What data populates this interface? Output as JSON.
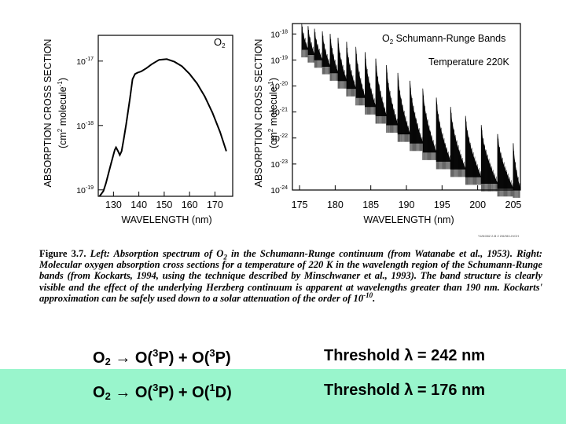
{
  "chart_data": [
    {
      "type": "line",
      "title": "O2",
      "xlabel": "WAVELENGTH (nm)",
      "ylabel": "ABSORPTION CROSS SECTION",
      "ylabel2": "(cm2 molecule-1)",
      "xlim": [
        124,
        177
      ],
      "ylim_log10": [
        -19.1,
        -16.6
      ],
      "xticks": [
        "130",
        "140",
        "150",
        "160",
        "170"
      ],
      "xtick_values": [
        130,
        140,
        150,
        160,
        170
      ],
      "yticks": [
        "10-17",
        "10-18",
        "10-19"
      ],
      "ytick_exponents": [
        -17,
        -18,
        -19
      ],
      "series": [
        {
          "name": "O2 Schumann-Runge continuum",
          "x": [
            124.5,
            126,
            127,
            128,
            129,
            130,
            130.5,
            131,
            131.8,
            132.5,
            133.2,
            134,
            135,
            136.5,
            137.5,
            138.5,
            139.5,
            141,
            143,
            145,
            148,
            151,
            154,
            157,
            160,
            163,
            166,
            169,
            172,
            174.5
          ],
          "log10_sigma": [
            -19.1,
            -19.02,
            -18.9,
            -18.75,
            -18.6,
            -18.45,
            -18.38,
            -18.34,
            -18.4,
            -18.46,
            -18.4,
            -18.22,
            -17.98,
            -17.58,
            -17.28,
            -17.2,
            -17.18,
            -17.16,
            -17.11,
            -17.05,
            -16.98,
            -16.97,
            -17.01,
            -17.08,
            -17.2,
            -17.35,
            -17.55,
            -17.8,
            -18.1,
            -18.4
          ]
        }
      ]
    },
    {
      "type": "line",
      "title": "O2 Schumann-Runge Bands",
      "subtitle": "Temperature 220K",
      "xlabel": "WAVELENGTH (nm)",
      "ylabel": "ABSORPTION CROSS SECTION",
      "ylabel2": "(cm2 molecule-1)",
      "xlim": [
        174,
        206
      ],
      "ylim_log10": [
        -24,
        -17.6
      ],
      "xticks": [
        "175",
        "180",
        "185",
        "190",
        "195",
        "200",
        "205"
      ],
      "xtick_values": [
        175,
        180,
        185,
        190,
        195,
        200,
        205
      ],
      "yticks": [
        "10-18",
        "10-19",
        "10-20",
        "10-21",
        "10-22",
        "10-23",
        "10-24"
      ],
      "ytick_exponents": [
        -18,
        -19,
        -20,
        -21,
        -22,
        -23,
        -24
      ],
      "band_origins_nm": [
        175.3,
        176.2,
        177.1,
        178.2,
        179.3,
        180.4,
        181.6,
        182.9,
        184.2,
        185.7,
        187.2,
        188.8,
        190.5,
        192.3,
        194.2,
        196.2,
        198.3,
        200.5,
        202.8,
        205.0
      ],
      "band_peaks_log10": [
        -17.6,
        -17.7,
        -17.8,
        -17.9,
        -18.0,
        -18.15,
        -18.3,
        -18.5,
        -18.7,
        -18.95,
        -19.2,
        -19.5,
        -19.8,
        -20.1,
        -20.45,
        -20.8,
        -21.15,
        -21.5,
        -21.85,
        -22.2
      ],
      "band_minima_log10": [
        -18.6,
        -18.8,
        -19.0,
        -19.25,
        -19.5,
        -19.8,
        -20.1,
        -20.45,
        -20.8,
        -21.15,
        -21.5,
        -21.85,
        -22.2,
        -22.55,
        -22.9,
        -23.2,
        -23.5,
        -23.75,
        -23.95,
        -24.0
      ],
      "continuum_floor_log10": -23.4
    }
  ],
  "figure_small_text": "YUNG82 2-B 2 2/6/98 LH/CH",
  "caption": {
    "label": "Figure 3.7.",
    "text_1": "Left: Absorption spectrum of O",
    "o2_sub": "2",
    "text_2": "in the Schumann-Runge continuum (from Watanabe et al., 1953). Right: Molecular oxygen absorption cross sections for a temperature of 220 K in the wavelength region of the Schumann-Runge bands (from Kockarts, 1994, using the technique described by Minschwaner et al., 1993). The band structure is clearly visible and the effect of the underlying Herzberg continuum is apparent at wavelengths greater than 190 nm. Kockarts' approximation can be safely used down to a solar attenuation of the order of 10",
    "exp": "-10",
    "end": "."
  },
  "reactions": [
    {
      "lhs": "O",
      "lhs_sub": "2",
      "arrow": "→",
      "p1": "O(",
      "p1_sup": "3",
      "p1_end": "P) + O(",
      "p2_sup": "3",
      "p2_end": "P)",
      "threshold": "Threshold λ = 242 nm"
    },
    {
      "lhs": "O",
      "lhs_sub": "2",
      "arrow": "→",
      "p1": "O(",
      "p1_sup": "3",
      "p1_end": "P) + O(",
      "p2_sup": "1",
      "p2_end": "D)",
      "threshold": "Threshold λ = 176 nm"
    }
  ]
}
